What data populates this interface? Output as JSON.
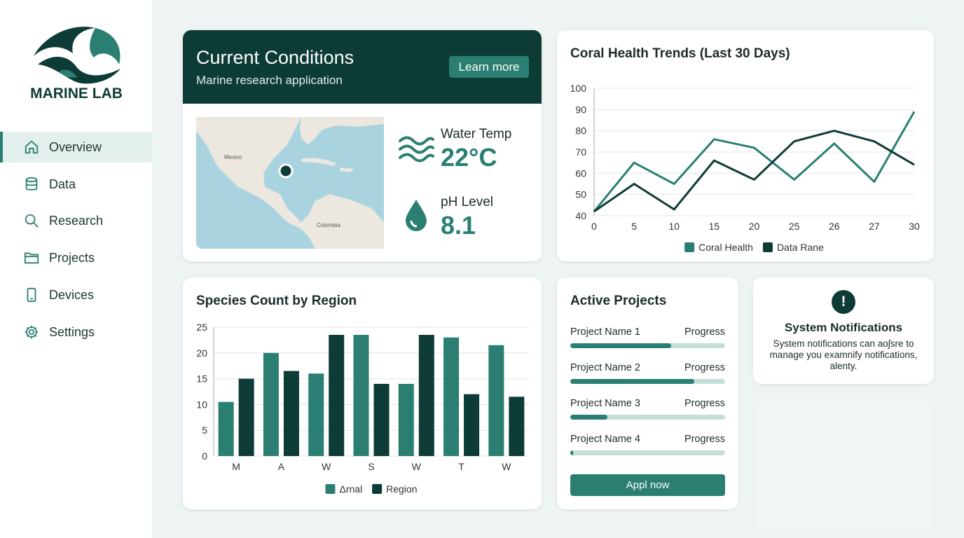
{
  "sidebar": {
    "brand": "MARINE LAB",
    "nav": [
      "Overview",
      "Data",
      "Research",
      "Projects",
      "Devices",
      "Settings"
    ],
    "active": 0
  },
  "conditions": {
    "title": "Current Conditions",
    "subtitle": "Marine research application",
    "button": "Learn more",
    "map_labels": [
      "Mexico",
      "Colombia"
    ],
    "metrics": [
      {
        "label": "Water Temp",
        "value": "22°C"
      },
      {
        "label": "pH Level",
        "value": "8.1"
      }
    ]
  },
  "chart_data": [
    {
      "type": "line",
      "title": "Coral Health Trends (Last 30 Days)",
      "categories": [
        "0",
        "5",
        "10",
        "15",
        "20",
        "25",
        "26",
        "27",
        "30"
      ],
      "series": [
        {
          "name": "Coral Health",
          "color": "#2a7f72",
          "values": [
            42,
            65,
            55,
            76,
            72,
            57,
            74,
            56,
            89
          ]
        },
        {
          "name": "Data Rane",
          "color": "#0d3b36",
          "values": [
            42,
            55,
            43,
            66,
            57,
            75,
            80,
            75,
            64
          ]
        }
      ],
      "ylim": [
        40,
        100
      ],
      "yticks": [
        40,
        50,
        60,
        70,
        80,
        90,
        100
      ],
      "grid": true,
      "legend": "bottom"
    },
    {
      "type": "bar",
      "title": "Species Count by Region",
      "categories": [
        "M",
        "A",
        "W",
        "S",
        "W",
        "T",
        "W"
      ],
      "series": [
        {
          "name": "Δrnal",
          "color": "#2a7f72",
          "values": [
            10.5,
            20,
            16,
            23.5,
            14,
            23,
            21.5
          ]
        },
        {
          "name": "Region",
          "color": "#0d3b36",
          "values": [
            15,
            16.5,
            23.5,
            14,
            23.5,
            12,
            11.5
          ]
        }
      ],
      "ylim": [
        0,
        25
      ],
      "yticks": [
        0,
        5,
        10,
        15,
        20,
        25
      ],
      "grid": true,
      "legend": "bottom"
    }
  ],
  "projects": {
    "title": "Active Projects",
    "items": [
      {
        "name": "Project Name 1",
        "status": "Progress",
        "progress": 0.65
      },
      {
        "name": "Project Name 2",
        "status": "Progress",
        "progress": 0.8
      },
      {
        "name": "Project Name 3",
        "status": "Progress",
        "progress": 0.24
      },
      {
        "name": "Project Name 4",
        "status": "Progress",
        "progress": 0.02
      }
    ],
    "button": "Appl now"
  },
  "notifications": {
    "icon": "!",
    "title": "System Notifications",
    "text": "System notifications can aoʃsre to manage you examnify notifications, alenty."
  }
}
